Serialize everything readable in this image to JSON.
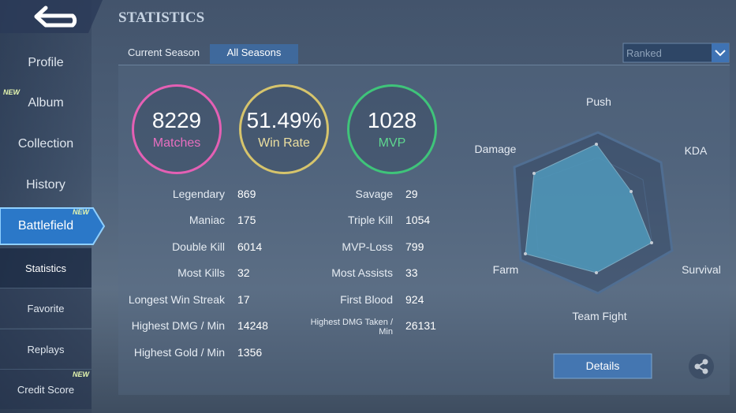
{
  "header": {
    "title": "STATISTICS"
  },
  "sidebar": {
    "items": [
      {
        "label": "Profile"
      },
      {
        "label": "Album",
        "badge": "NEW"
      },
      {
        "label": "Collection"
      },
      {
        "label": "History"
      },
      {
        "label": "Battlefield",
        "badge": "NEW"
      },
      {
        "label": "Statistics"
      },
      {
        "label": "Favorite"
      },
      {
        "label": "Replays"
      },
      {
        "label": "Credit Score",
        "badge": "NEW"
      }
    ]
  },
  "tabs": [
    "Current Season",
    "All Seasons"
  ],
  "dropdown": {
    "label": "Ranked"
  },
  "summary": [
    {
      "value": "8229",
      "label": "Matches"
    },
    {
      "value": "51.49%",
      "label": "Win Rate"
    },
    {
      "value": "1028",
      "label": "MVP"
    }
  ],
  "stats": {
    "left": [
      {
        "label": "Legendary",
        "value": "869"
      },
      {
        "label": "Maniac",
        "value": "175"
      },
      {
        "label": "Double Kill",
        "value": "6014"
      },
      {
        "label": "Most Kills",
        "value": "32"
      },
      {
        "label": "Longest Win Streak",
        "value": "17"
      },
      {
        "label": "Highest DMG / Min",
        "value": "14248"
      },
      {
        "label": "Highest Gold / Min",
        "value": "1356"
      }
    ],
    "right": [
      {
        "label": "Savage",
        "value": "29"
      },
      {
        "label": "Triple Kill",
        "value": "1054"
      },
      {
        "label": "MVP-Loss",
        "value": "799"
      },
      {
        "label": "Most Assists",
        "value": "33"
      },
      {
        "label": "First Blood",
        "value": "924"
      },
      {
        "label": "Highest DMG Taken / Min",
        "value": "26131"
      }
    ]
  },
  "radar": {
    "axes": [
      "Push",
      "KDA",
      "Survival",
      "Team Fight",
      "Farm",
      "Damage"
    ]
  },
  "button": {
    "label": "Details"
  }
}
